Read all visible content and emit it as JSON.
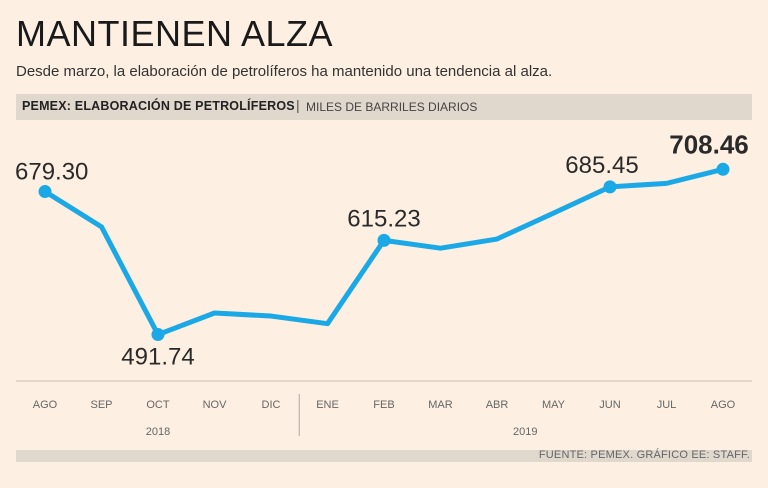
{
  "header": {
    "title": "MANTIENEN ALZA",
    "subtitle": "Desde marzo, la elaboración de petrolíferos ha mantenido una tendencia al alza."
  },
  "label_bar": {
    "bold": "PEMEX: ELABORACIÓN DE PETROLÍFEROS",
    "separator": "|",
    "unit": "MILES DE BARRILES DIARIOS"
  },
  "source": "FUENTE: PEMEX. GRÁFICO EE: STAFF.",
  "colors": {
    "line": "#1aa9e6",
    "background": "#fdf0e2",
    "band": "#e0d7cd"
  },
  "chart_data": {
    "type": "line",
    "title": "PEMEX: ELABORACIÓN DE PETROLÍFEROS",
    "ylabel": "MILES DE BARRILES DIARIOS",
    "categories": [
      "AGO",
      "SEP",
      "OCT",
      "NOV",
      "DIC",
      "ENE",
      "FEB",
      "MAR",
      "ABR",
      "MAY",
      "JUN",
      "JUL",
      "AGO"
    ],
    "values": [
      679.3,
      633,
      491.74,
      520,
      516,
      506,
      615.23,
      605,
      617,
      651,
      685.45,
      690,
      708.46
    ],
    "year_groups": [
      {
        "label": "2018",
        "start": 0,
        "end": 4
      },
      {
        "label": "2019",
        "start": 5,
        "end": 12
      }
    ],
    "annotations": [
      {
        "index": 0,
        "text": "679.30",
        "emphasis": false
      },
      {
        "index": 2,
        "text": "491.74",
        "emphasis": false
      },
      {
        "index": 6,
        "text": "615.23",
        "emphasis": false
      },
      {
        "index": 10,
        "text": "685.45",
        "emphasis": false
      },
      {
        "index": 12,
        "text": "708.46",
        "emphasis": true
      }
    ],
    "ylim": [
      440,
      760
    ],
    "grid": false
  }
}
